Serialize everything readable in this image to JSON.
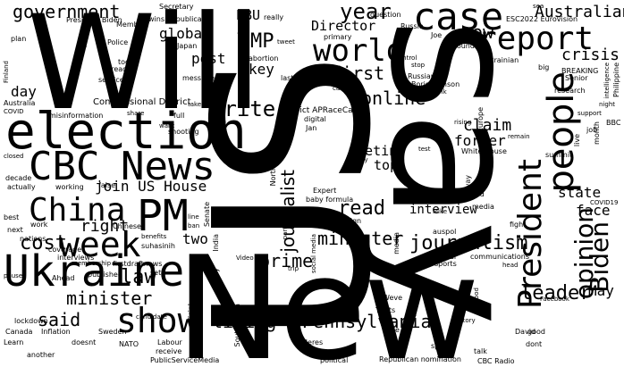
{
  "words": {
    "will": "Will",
    "us": "US",
    "new": "New",
    "say": "say",
    "election": "election",
    "cbc": "CBC",
    "news": "News",
    "pm": "PM",
    "china": "China",
    "ukraine": "Ukraine",
    "week": "week",
    "show": "show",
    "case": "case",
    "report": "report",
    "world": "world",
    "people": "people",
    "president": "President",
    "biden": "Biden",
    "opinion": "opinion",
    "government": "government",
    "australian": "Australian",
    "year": "year",
    "mp": "MP",
    "now": "now",
    "first": "first",
    "online": "online",
    "pennsylvania": "Pennsylvania",
    "journalism": "journalism",
    "journalist": "journalist",
    "read": "read",
    "write": "write",
    "leader": "leader",
    "minister_1": "minister",
    "minister_2": "minister",
    "prime": "prime",
    "living": "living",
    "said": "said",
    "cost": "cost",
    "law": "law",
    "right": "right",
    "day": "day",
    "join_us_house": "join US House",
    "two": "two",
    "global": "global",
    "post": "post",
    "key": "key",
    "ebu": "EBU",
    "director": "Director",
    "crisis": "crisis",
    "claim": "claim",
    "former": "former",
    "meeting": "meeting",
    "top": "top",
    "state": "state",
    "face": "face",
    "may": "May",
    "interview": "interview",
    "president_biden": "President Biden",
    "secretary": "Secretary",
    "wins_republican": "wins Republican",
    "member": "Member",
    "question": "question",
    "esc2022": "ESC2022 Eurovision",
    "really": "really",
    "need": "need",
    "tweet": "tweet",
    "primary": "primary",
    "russia": "Russia",
    "joe": "Joe",
    "found": "found",
    "ukrainian": "Ukrainian",
    "japan": "Japan",
    "abortion": "abortion",
    "last": "last",
    "message": "message",
    "police": "Police",
    "today": "today",
    "thread": "thread",
    "service": "service",
    "plan": "plan",
    "long": "long",
    "sea": "sea",
    "breaking": "BREAKING",
    "senior": "Senior",
    "research": "research",
    "big": "big",
    "philippine": "Philippine",
    "intelligence": "intelligence",
    "russian": "Russian",
    "boris_johnson": "Boris Johnson",
    "caught": "caught",
    "stop": "stop",
    "think": "think",
    "control": "control",
    "congressional": "Congressional District",
    "district_apracecall": "District APRaceCall",
    "digital": "digital",
    "misinformation": "misinformation",
    "share": "share",
    "full": "full",
    "take": "take",
    "want": "want",
    "shooting": "shooting",
    "decade": "decade",
    "actually": "actually",
    "closed": "closed",
    "australia": "Australia",
    "covid": "COVID",
    "finland": "Finland",
    "market": "market",
    "europe": "Europe",
    "rising": "rising",
    "national": "national",
    "job": "job",
    "bbc": "BBC",
    "support": "support",
    "night": "night",
    "remain": "remain",
    "summit": "summit",
    "live": "live",
    "month": "month",
    "covid19": "COVID19",
    "white_house": "White House",
    "test": "test",
    "family": "family",
    "tell": "tell",
    "build": "build",
    "media_1": "media",
    "media_2": "media",
    "way": "way",
    "fight": "fight",
    "mike": "Mike",
    "auspol": "auspol",
    "federal": "federal",
    "sports": "sports",
    "communications": "communications",
    "head": "head",
    "social_media": "social media",
    "expert": "Expert",
    "baby_formula": "baby formula",
    "foreign": "foreign",
    "million": "million",
    "north": "North",
    "parties": "parties",
    "jan": "Jan",
    "working": "working",
    "false": "false",
    "work": "work",
    "best": "best",
    "next": "next",
    "nations": "nations",
    "coverage": "coverage",
    "interviews": "interviews",
    "pause": "pause",
    "ahead": "Ahead",
    "published": "published",
    "membership": "membership",
    "firstdraftnews": "firstdraftnews",
    "chinese": "Chinese",
    "benefits": "benefits",
    "suhasinih": "suhasinih",
    "line": "line",
    "ban": "ban",
    "senate": "Senate",
    "india": "India",
    "party": "party",
    "set": "set",
    "lockdown": "lockdown",
    "canada": "Canada",
    "learn": "Learn",
    "another": "another",
    "inflation": "Inflation",
    "doesnt": "doesnt",
    "sweden": "Sweden",
    "nato": "NATO",
    "candidate": "candidate",
    "labour": "Labour",
    "receive": "receive",
    "publicservicemedia": "PublicServiceMedia",
    "official": "official",
    "south_korea": "South Korea",
    "video": "Video",
    "trip": "trip",
    "heres": "Heres",
    "political": "political",
    "weve": "Weve",
    "thats": "Thats",
    "one": "one",
    "speaks": "speaks",
    "republican_nomination": "Republican nomination",
    "talk": "talk",
    "cbc_radio": "CBC Radio",
    "house": "House",
    "food": "food",
    "story": "story",
    "david": "David",
    "good": "good",
    "facebook": "Facebook",
    "dont": "dont"
  }
}
